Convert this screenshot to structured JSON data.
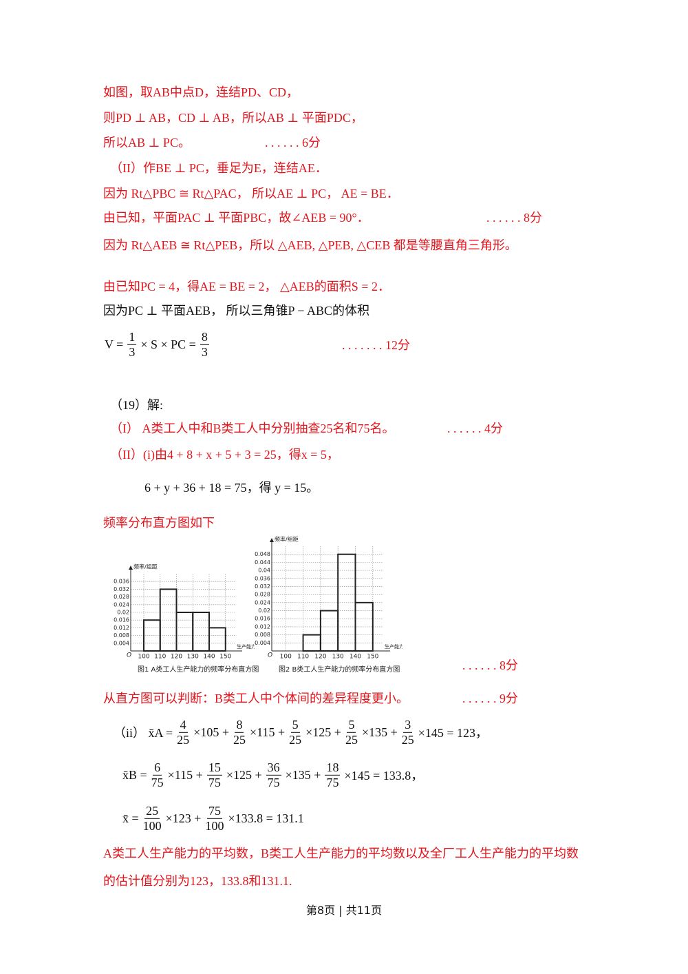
{
  "lines": [
    {
      "text": "如图，取AB中点D，连结PD、CD，"
    },
    {
      "text": "则PD ⊥ AB，CD ⊥ AB，所以AB ⊥ 平面PDC，"
    },
    {
      "text": "所以AB ⊥ PC。",
      "score": ". . . . . . 6分"
    },
    {
      "text": "（II）作BE ⊥ PC，垂足为E，连结AE．"
    },
    {
      "text": "因为 Rt△PBC ≅ Rt△PAC， 所以AE ⊥ PC， AE = BE．"
    },
    {
      "text": "由已知，平面PAC ⊥ 平面PBC，故∠AEB = 90°．",
      "score": ". . . . . . 8分"
    },
    {
      "text": "因为 Rt△AEB ≅ Rt△PEB，所以 △AEB, △PEB, △CEB 都是等腰直角三角形。"
    },
    {
      "text": "由已知PC = 4，得AE = BE = 2， △AEB的面积S = 2．"
    },
    {
      "text": "因为PC ⊥ 平面AEB， 所以三角锥P − ABC的体积"
    },
    {
      "parts": [
        "V =",
        {
          "num": "1",
          "den": "3"
        },
        "× S × PC =",
        {
          "num": "8",
          "den": "3"
        }
      ],
      "score": ". . . . . . . 12分"
    },
    {
      "text": "（19）解:"
    },
    {
      "text": "（I） A类工人中和B类工人中分别抽查25名和75名。",
      "score": ". . . . . . 4分"
    },
    {
      "text": "（II）(i)由4 + 8 + x + 5 + 3 = 25，得x = 5，"
    },
    {
      "text": "6 + y + 36 + 18 = 75，得 y = 15。"
    },
    {
      "text": "频率分布直方图如下",
      "score": ". . . . . . 8分"
    },
    {
      "text": "从直方图可以判断：B类工人中个体间的差异程度更小。",
      "score": ". . . . . . 9分"
    },
    {
      "parts": [
        "（ii） x̄A =",
        {
          "num": "4",
          "den": "25"
        },
        "×105 +",
        {
          "num": "8",
          "den": "25"
        },
        "×115 +",
        {
          "num": "5",
          "den": "25"
        },
        "×125 +",
        {
          "num": "5",
          "den": "25"
        },
        "×135 +",
        {
          "num": "3",
          "den": "25"
        },
        "×145 = 123，"
      ]
    },
    {
      "parts": [
        "x̄B =",
        {
          "num": "6",
          "den": "75"
        },
        "×115 +",
        {
          "num": "15",
          "den": "75"
        },
        "×125 +",
        {
          "num": "36",
          "den": "75"
        },
        "×135 +",
        {
          "num": "18",
          "den": "75"
        },
        "×145 = 133.8，"
      ]
    },
    {
      "parts": [
        "x̄ =",
        {
          "num": "25",
          "den": "100"
        },
        "×123 +",
        {
          "num": "75",
          "den": "100"
        },
        "×133.8 = 131.1"
      ]
    },
    {
      "text": "A类工人生产能力的平均数，B类工人生产能力的平均数以及全厂工人生产能力的平均数"
    },
    {
      "text": "的估计值分别为123，133.8和131.1."
    }
  ],
  "chart_data": [
    {
      "type": "histogram",
      "y_label": "频率/组距",
      "x_label": "生产能力",
      "origin": "O",
      "caption": "图1 A类工人生产能力的频率分布直方图",
      "bins": [
        100,
        110,
        120,
        130,
        140,
        150
      ],
      "values": [
        0.016,
        0.032,
        0.02,
        0.02,
        0.012
      ],
      "xlim": [
        92,
        156
      ],
      "xticks": [
        100,
        110,
        120,
        130,
        140,
        150
      ],
      "ylim": [
        0,
        0.04
      ],
      "yticks": [
        0.004,
        0.008,
        0.012,
        0.016,
        0.02,
        0.024,
        0.028,
        0.032,
        0.036
      ],
      "grid": true,
      "color": "#222"
    },
    {
      "type": "histogram",
      "y_label": "频率/组距",
      "x_label": "生产能力",
      "origin": "O",
      "caption": "图2 B类工人生产能力的频率分布直方图",
      "bins": [
        110,
        120,
        130,
        140,
        150
      ],
      "values": [
        0.008,
        0.02,
        0.048,
        0.024
      ],
      "xlim": [
        92,
        156
      ],
      "xticks": [
        100,
        110,
        120,
        130,
        140,
        150
      ],
      "ylim": [
        0,
        0.052
      ],
      "yticks": [
        0.004,
        0.008,
        0.012,
        0.016,
        0.02,
        0.024,
        0.028,
        0.032,
        0.036,
        0.04,
        0.044,
        0.048
      ],
      "grid": true,
      "color": "#222"
    }
  ],
  "footer": "第8页 | 共11页"
}
